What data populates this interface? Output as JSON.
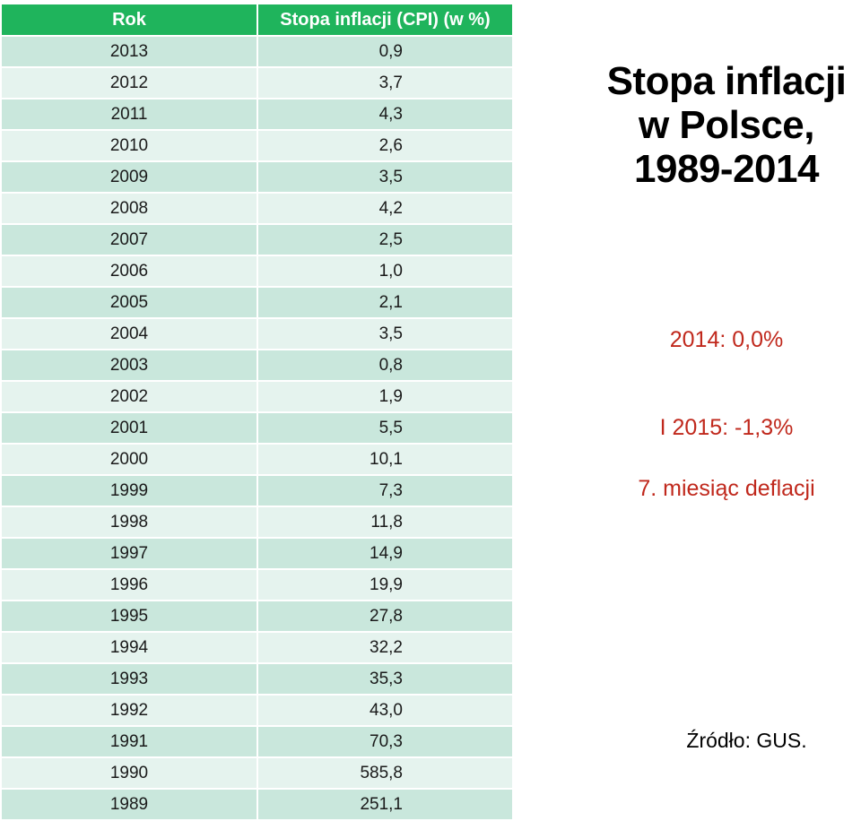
{
  "table": {
    "headers": {
      "year": "Rok",
      "cpi": "Stopa inflacji (CPI) (w %)"
    },
    "rows": [
      {
        "year": "2013",
        "cpi": "0,9"
      },
      {
        "year": "2012",
        "cpi": "3,7"
      },
      {
        "year": "2011",
        "cpi": "4,3"
      },
      {
        "year": "2010",
        "cpi": "2,6"
      },
      {
        "year": "2009",
        "cpi": "3,5"
      },
      {
        "year": "2008",
        "cpi": "4,2"
      },
      {
        "year": "2007",
        "cpi": "2,5"
      },
      {
        "year": "2006",
        "cpi": "1,0"
      },
      {
        "year": "2005",
        "cpi": "2,1"
      },
      {
        "year": "2004",
        "cpi": "3,5"
      },
      {
        "year": "2003",
        "cpi": "0,8"
      },
      {
        "year": "2002",
        "cpi": "1,9"
      },
      {
        "year": "2001",
        "cpi": "5,5"
      },
      {
        "year": "2000",
        "cpi": "10,1"
      },
      {
        "year": "1999",
        "cpi": "7,3"
      },
      {
        "year": "1998",
        "cpi": "11,8"
      },
      {
        "year": "1997",
        "cpi": "14,9"
      },
      {
        "year": "1996",
        "cpi": "19,9"
      },
      {
        "year": "1995",
        "cpi": "27,8"
      },
      {
        "year": "1994",
        "cpi": "32,2"
      },
      {
        "year": "1993",
        "cpi": "35,3"
      },
      {
        "year": "1992",
        "cpi": "43,0"
      },
      {
        "year": "1991",
        "cpi": "70,3"
      },
      {
        "year": "1990",
        "cpi": "585,8"
      },
      {
        "year": "1989",
        "cpi": "251,1"
      }
    ]
  },
  "title": {
    "line1": "Stopa inflacji",
    "line2": "w Polsce,",
    "line3": "1989-2014"
  },
  "notes": {
    "inflation_2014": "2014: 0,0%",
    "inflation_jan_2015": "I 2015: -1,3%",
    "deflation_months": "7. miesiąc deflacji"
  },
  "source": "Źródło: GUS."
}
